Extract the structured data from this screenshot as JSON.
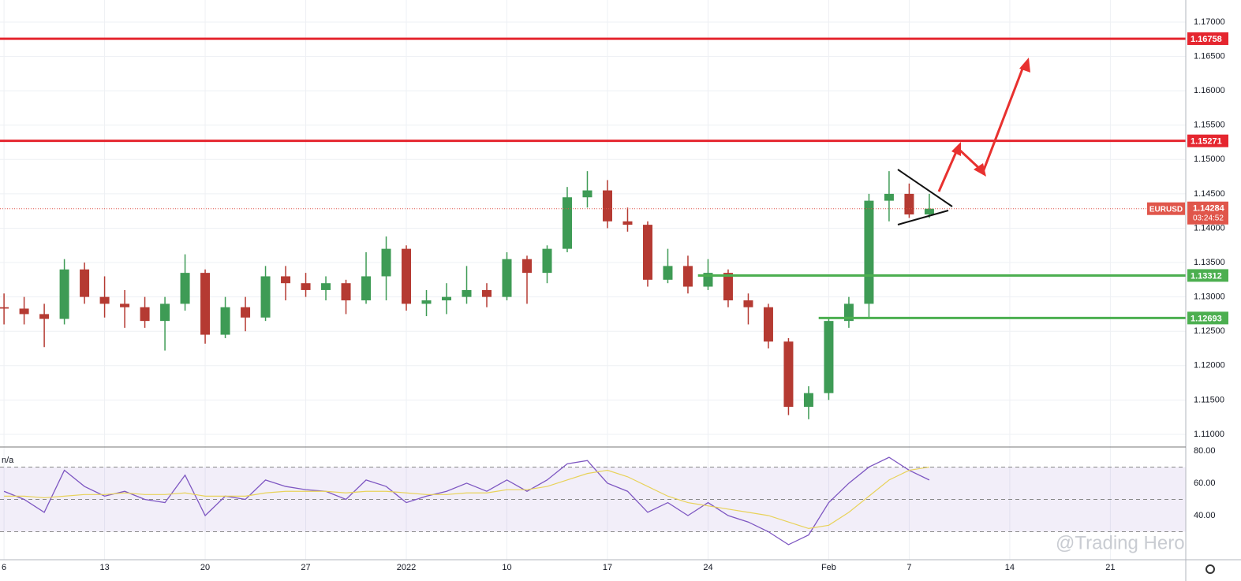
{
  "chart_data": [
    {
      "type": "candlestick",
      "x": [
        0,
        1,
        2,
        3,
        4,
        5,
        6,
        7,
        8,
        9,
        10,
        11,
        12,
        13,
        14,
        15,
        16,
        17,
        18,
        19,
        20,
        21,
        22,
        23,
        24,
        25,
        26,
        27,
        28,
        29,
        30,
        31,
        32,
        33,
        34,
        35,
        36,
        37,
        38,
        39,
        40,
        41,
        42,
        43,
        44,
        45,
        46
      ],
      "open": [
        1.1285,
        1.1283,
        1.1275,
        1.1268,
        1.134,
        1.13,
        1.129,
        1.1285,
        1.1265,
        1.129,
        1.1335,
        1.1245,
        1.1285,
        1.127,
        1.133,
        1.132,
        1.131,
        1.132,
        1.1295,
        1.133,
        1.137,
        1.129,
        1.1295,
        1.13,
        1.131,
        1.13,
        1.1355,
        1.1335,
        1.137,
        1.1445,
        1.1455,
        1.141,
        1.1405,
        1.1325,
        1.1345,
        1.1315,
        1.1335,
        1.1295,
        1.1285,
        1.1235,
        1.114,
        1.116,
        1.1265,
        1.129,
        1.144,
        1.145,
        1.142
      ],
      "high": [
        1.1305,
        1.13,
        1.129,
        1.1355,
        1.135,
        1.133,
        1.131,
        1.13,
        1.13,
        1.1362,
        1.134,
        1.13,
        1.13,
        1.1345,
        1.1345,
        1.1335,
        1.133,
        1.1325,
        1.1365,
        1.1388,
        1.1375,
        1.131,
        1.132,
        1.1345,
        1.132,
        1.1365,
        1.136,
        1.1375,
        1.146,
        1.1483,
        1.147,
        1.143,
        1.141,
        1.137,
        1.136,
        1.1355,
        1.134,
        1.1305,
        1.129,
        1.124,
        1.117,
        1.127,
        1.13,
        1.145,
        1.1483,
        1.1465,
        1.145
      ],
      "low": [
        1.126,
        1.126,
        1.1227,
        1.126,
        1.129,
        1.127,
        1.1255,
        1.1255,
        1.1222,
        1.128,
        1.1232,
        1.124,
        1.125,
        1.1265,
        1.1295,
        1.13,
        1.1295,
        1.1275,
        1.129,
        1.1295,
        1.128,
        1.1272,
        1.1275,
        1.129,
        1.1285,
        1.1295,
        1.129,
        1.132,
        1.1365,
        1.143,
        1.14,
        1.1395,
        1.1315,
        1.132,
        1.1305,
        1.131,
        1.1285,
        1.126,
        1.1225,
        1.1128,
        1.1122,
        1.115,
        1.1255,
        1.1268,
        1.141,
        1.1415,
        1.1415
      ],
      "close": [
        1.1283,
        1.1275,
        1.1268,
        1.134,
        1.13,
        1.129,
        1.1285,
        1.1265,
        1.129,
        1.1335,
        1.1245,
        1.1285,
        1.127,
        1.133,
        1.132,
        1.131,
        1.132,
        1.1295,
        1.133,
        1.137,
        1.129,
        1.1295,
        1.13,
        1.131,
        1.13,
        1.1355,
        1.1335,
        1.137,
        1.1445,
        1.1455,
        1.141,
        1.1405,
        1.1325,
        1.1345,
        1.1315,
        1.1335,
        1.1295,
        1.1285,
        1.1235,
        1.114,
        1.116,
        1.1265,
        1.129,
        1.144,
        1.145,
        1.142,
        1.14284
      ],
      "up_color": "#3e9b55",
      "down_color": "#b53a32",
      "xlim": [
        -0.2,
        58.75
      ],
      "xticks": [
        {
          "value": 0,
          "label": "6"
        },
        {
          "value": 5,
          "label": "13"
        },
        {
          "value": 10,
          "label": "20"
        },
        {
          "value": 15,
          "label": "27"
        },
        {
          "value": 20,
          "label": "2022"
        },
        {
          "value": 25,
          "label": "10"
        },
        {
          "value": 30,
          "label": "17"
        },
        {
          "value": 35,
          "label": "24"
        },
        {
          "value": 41,
          "label": "Feb"
        },
        {
          "value": 45,
          "label": "7"
        },
        {
          "value": 50,
          "label": "14"
        },
        {
          "value": 55,
          "label": "21"
        }
      ],
      "ylim": [
        1.10816,
        1.17321
      ],
      "yticks": [
        {
          "value": 1.11,
          "label": "1.11000"
        },
        {
          "value": 1.115,
          "label": "1.11500"
        },
        {
          "value": 1.12,
          "label": "1.12000"
        },
        {
          "value": 1.125,
          "label": "1.12500"
        },
        {
          "value": 1.13,
          "label": "1.13000"
        },
        {
          "value": 1.135,
          "label": "1.13500"
        },
        {
          "value": 1.14,
          "label": "1.14000"
        },
        {
          "value": 1.145,
          "label": "1.14500"
        },
        {
          "value": 1.15,
          "label": "1.15000"
        },
        {
          "value": 1.155,
          "label": "1.15500"
        },
        {
          "value": 1.16,
          "label": "1.16000"
        },
        {
          "value": 1.165,
          "label": "1.16500"
        },
        {
          "value": 1.17,
          "label": "1.17000"
        }
      ],
      "grid": true,
      "levels": [
        {
          "value": 1.16758,
          "color": "#e5262f"
        },
        {
          "value": 1.15271,
          "color": "#e5262f"
        },
        {
          "value": 1.13312,
          "color": "#4caf50",
          "x_start": 34.5
        },
        {
          "value": 1.12693,
          "color": "#4caf50",
          "x_start": 40.5
        }
      ],
      "symbol": "EURUSD",
      "last_price": 1.14284,
      "countdown": "03:24:52",
      "last_color": "#e0564b"
    },
    {
      "type": "line",
      "label": "n/a",
      "x": [
        0,
        1,
        2,
        3,
        4,
        5,
        6,
        7,
        8,
        9,
        10,
        11,
        12,
        13,
        14,
        15,
        16,
        17,
        18,
        19,
        20,
        21,
        22,
        23,
        24,
        25,
        26,
        27,
        28,
        29,
        30,
        31,
        32,
        33,
        34,
        35,
        36,
        37,
        38,
        39,
        40,
        41,
        42,
        43,
        44,
        45,
        46
      ],
      "series": [
        {
          "color": "#7e57c2",
          "values": [
            55,
            50,
            42,
            68,
            58,
            52,
            55,
            50,
            48,
            65,
            40,
            52,
            50,
            62,
            58,
            56,
            55,
            50,
            62,
            58,
            48,
            52,
            55,
            60,
            55,
            62,
            55,
            62,
            72,
            74,
            60,
            55,
            42,
            48,
            40,
            48,
            40,
            36,
            30,
            22,
            28,
            48,
            60,
            70,
            76,
            68,
            62
          ]
        },
        {
          "color": "#e8d25a",
          "values": [
            52,
            52,
            51,
            52,
            53,
            53,
            54,
            53,
            53,
            54,
            52,
            52,
            52,
            54,
            55,
            55,
            55,
            54,
            55,
            55,
            54,
            53,
            53,
            54,
            54,
            56,
            56,
            58,
            62,
            66,
            68,
            64,
            58,
            52,
            48,
            46,
            44,
            42,
            40,
            36,
            32,
            34,
            42,
            52,
            62,
            68,
            70
          ]
        }
      ],
      "ylim": [
        12.7,
        82.4
      ],
      "yticks": [
        {
          "value": 40,
          "label": "40.00"
        },
        {
          "value": 60,
          "label": "60.00"
        },
        {
          "value": 80,
          "label": "80.00"
        }
      ],
      "band": [
        30,
        70
      ],
      "levels": [
        30,
        50,
        70
      ]
    }
  ],
  "watermark": "@Trading Hero"
}
